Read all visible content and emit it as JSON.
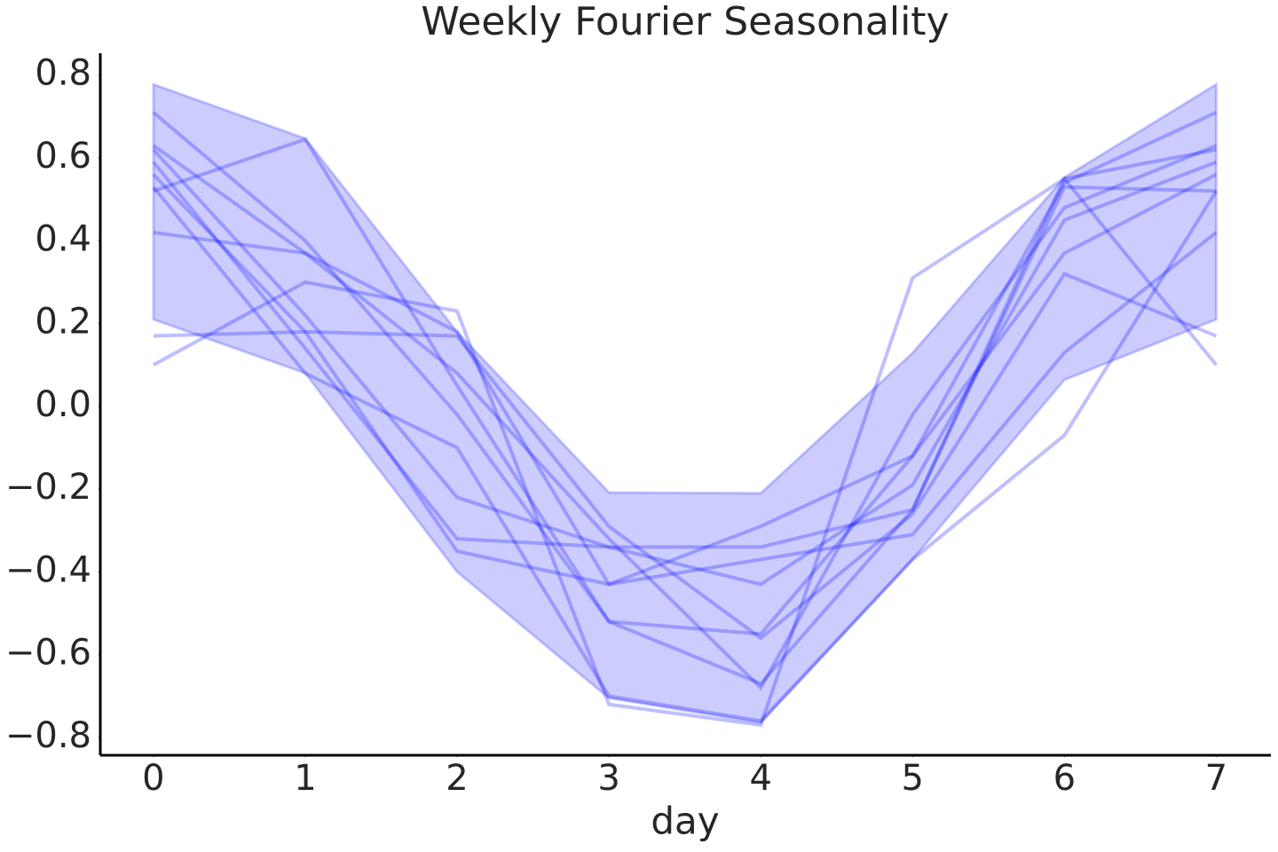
{
  "chart_data": {
    "type": "line",
    "title": "Weekly Fourier Seasonality",
    "x_label": "day",
    "x": [
      0,
      1,
      2,
      3,
      4,
      5,
      6,
      7
    ],
    "band": {
      "color": "#0000ff",
      "lower": [
        0.21,
        0.08,
        -0.4,
        -0.705,
        -0.765,
        -0.37,
        0.064,
        0.21
      ],
      "upper": [
        0.778,
        0.647,
        0.18,
        -0.208,
        -0.21,
        0.129,
        0.553,
        0.778
      ]
    },
    "series": [
      {
        "color": "#0000ff",
        "values": [
          0.71,
          0.4,
          -0.02,
          -0.52,
          -0.55,
          -0.12,
          0.54,
          0.71
        ]
      },
      {
        "color": "#0000ff",
        "values": [
          0.63,
          0.37,
          0.08,
          -0.32,
          -0.68,
          -0.02,
          0.48,
          0.63
        ]
      },
      {
        "color": "#0000ff",
        "values": [
          0.62,
          0.22,
          -0.22,
          -0.34,
          -0.34,
          -0.25,
          0.55,
          0.62
        ]
      },
      {
        "color": "#0000ff",
        "values": [
          0.59,
          0.14,
          -0.32,
          -0.34,
          -0.43,
          -0.19,
          0.45,
          0.59
        ]
      },
      {
        "color": "#0000ff",
        "values": [
          0.56,
          0.18,
          -0.35,
          -0.43,
          -0.29,
          -0.12,
          0.37,
          0.56
        ]
      },
      {
        "color": "#0000ff",
        "values": [
          0.1,
          0.3,
          0.23,
          -0.72,
          -0.77,
          0.31,
          0.55,
          0.1
        ]
      },
      {
        "color": "#0000ff",
        "values": [
          0.52,
          0.645,
          0.05,
          -0.52,
          -0.67,
          -0.25,
          0.53,
          0.52
        ]
      },
      {
        "color": "#0000ff",
        "values": [
          0.42,
          0.37,
          0.18,
          -0.43,
          -0.37,
          -0.31,
          0.13,
          0.42
        ]
      },
      {
        "color": "#0000ff",
        "values": [
          0.17,
          0.18,
          0.17,
          -0.29,
          -0.56,
          -0.26,
          0.32,
          0.17
        ]
      },
      {
        "color": "#0000ff",
        "values": [
          0.53,
          0.08,
          -0.1,
          -0.7,
          -0.76,
          -0.37,
          -0.07,
          0.52
        ]
      }
    ],
    "xlim": [
      -0.35,
      7.36
    ],
    "ylim": [
      -0.843,
      0.853
    ],
    "xticks": [
      0,
      1,
      2,
      3,
      4,
      5,
      6,
      7
    ],
    "yticks": [
      {
        "value": -0.8,
        "label": "−0.8"
      },
      {
        "value": -0.6,
        "label": "−0.6"
      },
      {
        "value": -0.4,
        "label": "−0.4"
      },
      {
        "value": -0.2,
        "label": "−0.2"
      },
      {
        "value": 0,
        "label": "0.0"
      },
      0.2,
      0.4,
      0.6,
      0.8
    ],
    "grid": false
  }
}
